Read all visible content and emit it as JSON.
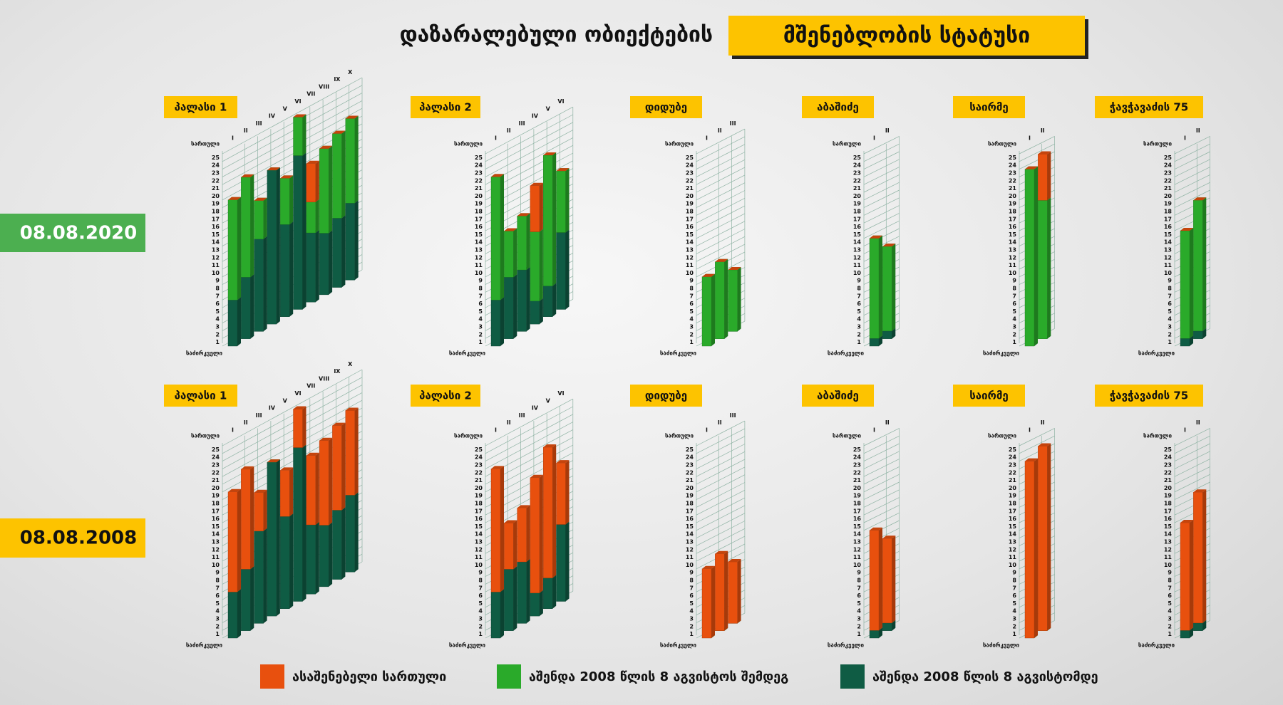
{
  "header": {
    "title": "დაზარალებული ობიექტების",
    "highlight": "მშენებლობის სტატუსი"
  },
  "row_labels": [
    "08.08.2020",
    "08.08.2008"
  ],
  "legend": [
    {
      "name": "ასაშენებელი სართული",
      "color": "#e8500e"
    },
    {
      "name": "აშენდა 2008 წლის 8 აგვისტოს შემდეგ",
      "color": "#2aaa2a"
    },
    {
      "name": "აშენდა 2008 წლის 8 აგვისტომდე",
      "color": "#0f5c44"
    }
  ],
  "chart_data": [
    {
      "type": "bar",
      "title": "პალასი 1",
      "y_label": "სართული",
      "y_base_label": "საძირკველი",
      "categories": [
        "I",
        "II",
        "III",
        "IV",
        "V",
        "VI",
        "VII",
        "VIII",
        "IX",
        "X"
      ],
      "series": [
        {
          "values": [
            0,
            0,
            0,
            0,
            0,
            0,
            5,
            0,
            0,
            0
          ]
        },
        {
          "values": [
            13,
            13,
            5,
            0,
            6,
            5,
            4,
            11,
            11,
            11
          ]
        },
        {
          "values": [
            6,
            8,
            12,
            20,
            12,
            20,
            9,
            8,
            9,
            10
          ]
        }
      ],
      "ylim": [
        0,
        25
      ],
      "yticks": [
        1,
        2,
        3,
        4,
        5,
        6,
        7,
        8,
        9,
        10,
        11,
        12,
        13,
        14,
        15,
        16,
        17,
        18,
        19,
        20,
        21,
        22,
        23,
        24,
        25
      ]
    },
    {
      "type": "bar",
      "title": "პალასი 2",
      "y_label": "სართული",
      "y_base_label": "საძირკველი",
      "categories": [
        "I",
        "II",
        "III",
        "IV",
        "V",
        "VI"
      ],
      "series": [
        {
          "values": [
            0,
            0,
            0,
            6,
            0,
            0
          ]
        },
        {
          "values": [
            16,
            6,
            7,
            9,
            17,
            8
          ]
        },
        {
          "values": [
            6,
            8,
            8,
            3,
            4,
            10
          ]
        }
      ],
      "ylim": [
        0,
        25
      ],
      "yticks": [
        1,
        2,
        3,
        4,
        5,
        6,
        7,
        8,
        9,
        10,
        11,
        12,
        13,
        14,
        15,
        16,
        17,
        18,
        19,
        20,
        21,
        22,
        23,
        24,
        25
      ]
    },
    {
      "type": "bar",
      "title": "დიდუბე",
      "y_label": "სართული",
      "y_base_label": "საძირკველი",
      "categories": [
        "I",
        "II",
        "III"
      ],
      "series": [
        {
          "values": [
            0,
            0,
            0
          ]
        },
        {
          "values": [
            9,
            10,
            8
          ]
        },
        {
          "values": [
            0,
            0,
            0
          ]
        }
      ],
      "ylim": [
        0,
        25
      ],
      "yticks": [
        1,
        2,
        3,
        4,
        5,
        6,
        7,
        8,
        9,
        10,
        11,
        12,
        13,
        14,
        15,
        16,
        17,
        18,
        19,
        20,
        21,
        22,
        23,
        24,
        25
      ]
    },
    {
      "type": "bar",
      "title": "აბაშიძე",
      "y_label": "სართული",
      "y_base_label": "საძირკველი",
      "categories": [
        "I",
        "II"
      ],
      "series": [
        {
          "values": [
            0,
            0
          ]
        },
        {
          "values": [
            13,
            11
          ]
        },
        {
          "values": [
            1,
            1
          ]
        }
      ],
      "ylim": [
        0,
        25
      ],
      "yticks": [
        1,
        2,
        3,
        4,
        5,
        6,
        7,
        8,
        9,
        10,
        11,
        12,
        13,
        14,
        15,
        16,
        17,
        18,
        19,
        20,
        21,
        22,
        23,
        24,
        25
      ]
    },
    {
      "type": "bar",
      "title": "საირმე",
      "y_label": "სართული",
      "y_base_label": "საძირკველი",
      "categories": [
        "I",
        "II"
      ],
      "series": [
        {
          "values": [
            0,
            6
          ]
        },
        {
          "values": [
            23,
            18
          ]
        },
        {
          "values": [
            0,
            0
          ]
        }
      ],
      "ylim": [
        0,
        25
      ],
      "yticks": [
        1,
        2,
        3,
        4,
        5,
        6,
        7,
        8,
        9,
        10,
        11,
        12,
        13,
        14,
        15,
        16,
        17,
        18,
        19,
        20,
        21,
        22,
        23,
        24,
        25
      ]
    },
    {
      "type": "bar",
      "title": "ჭავჭავაძის 75",
      "y_label": "სართული",
      "y_base_label": "საძირკველი",
      "categories": [
        "I",
        "II"
      ],
      "series": [
        {
          "values": [
            0,
            0
          ]
        },
        {
          "values": [
            14,
            17
          ]
        },
        {
          "values": [
            1,
            1
          ]
        }
      ],
      "ylim": [
        0,
        25
      ],
      "yticks": [
        1,
        2,
        3,
        4,
        5,
        6,
        7,
        8,
        9,
        10,
        11,
        12,
        13,
        14,
        15,
        16,
        17,
        18,
        19,
        20,
        21,
        22,
        23,
        24,
        25
      ]
    },
    {
      "type": "bar",
      "title": "პალასი 1",
      "y_label": "სართული",
      "y_base_label": "საძირკველი",
      "categories": [
        "I",
        "II",
        "III",
        "IV",
        "V",
        "VI",
        "VII",
        "VIII",
        "IX",
        "X"
      ],
      "series": [
        {
          "values": [
            13,
            13,
            5,
            0,
            6,
            5,
            9,
            11,
            11,
            11
          ]
        },
        {
          "values": [
            0,
            0,
            0,
            0,
            0,
            0,
            0,
            0,
            0,
            0
          ]
        },
        {
          "values": [
            6,
            8,
            12,
            20,
            12,
            20,
            9,
            8,
            9,
            10
          ]
        }
      ],
      "ylim": [
        0,
        25
      ],
      "yticks": [
        1,
        2,
        3,
        4,
        5,
        6,
        7,
        8,
        9,
        10,
        11,
        12,
        13,
        14,
        15,
        16,
        17,
        18,
        19,
        20,
        21,
        22,
        23,
        24,
        25
      ]
    },
    {
      "type": "bar",
      "title": "პალასი 2",
      "y_label": "სართული",
      "y_base_label": "საძირკველი",
      "categories": [
        "I",
        "II",
        "III",
        "IV",
        "V",
        "VI"
      ],
      "series": [
        {
          "values": [
            16,
            6,
            7,
            15,
            17,
            8
          ]
        },
        {
          "values": [
            0,
            0,
            0,
            0,
            0,
            0
          ]
        },
        {
          "values": [
            6,
            8,
            8,
            3,
            4,
            10
          ]
        }
      ],
      "ylim": [
        0,
        25
      ],
      "yticks": [
        1,
        2,
        3,
        4,
        5,
        6,
        7,
        8,
        9,
        10,
        11,
        12,
        13,
        14,
        15,
        16,
        17,
        18,
        19,
        20,
        21,
        22,
        23,
        24,
        25
      ]
    },
    {
      "type": "bar",
      "title": "დიდუბე",
      "y_label": "სართული",
      "y_base_label": "საძირკველი",
      "categories": [
        "I",
        "II",
        "III"
      ],
      "series": [
        {
          "values": [
            9,
            10,
            8
          ]
        },
        {
          "values": [
            0,
            0,
            0
          ]
        },
        {
          "values": [
            0,
            0,
            0
          ]
        }
      ],
      "ylim": [
        0,
        25
      ],
      "yticks": [
        1,
        2,
        3,
        4,
        5,
        6,
        7,
        8,
        9,
        10,
        11,
        12,
        13,
        14,
        15,
        16,
        17,
        18,
        19,
        20,
        21,
        22,
        23,
        24,
        25
      ]
    },
    {
      "type": "bar",
      "title": "აბაშიძე",
      "y_label": "სართული",
      "y_base_label": "საძირკველი",
      "categories": [
        "I",
        "II"
      ],
      "series": [
        {
          "values": [
            13,
            11
          ]
        },
        {
          "values": [
            0,
            0
          ]
        },
        {
          "values": [
            1,
            1
          ]
        }
      ],
      "ylim": [
        0,
        25
      ],
      "yticks": [
        1,
        2,
        3,
        4,
        5,
        6,
        7,
        8,
        9,
        10,
        11,
        12,
        13,
        14,
        15,
        16,
        17,
        18,
        19,
        20,
        21,
        22,
        23,
        24,
        25
      ]
    },
    {
      "type": "bar",
      "title": "საირმე",
      "y_label": "სართული",
      "y_base_label": "საძირკველი",
      "categories": [
        "I",
        "II"
      ],
      "series": [
        {
          "values": [
            23,
            24
          ]
        },
        {
          "values": [
            0,
            0
          ]
        },
        {
          "values": [
            0,
            0
          ]
        }
      ],
      "ylim": [
        0,
        25
      ],
      "yticks": [
        1,
        2,
        3,
        4,
        5,
        6,
        7,
        8,
        9,
        10,
        11,
        12,
        13,
        14,
        15,
        16,
        17,
        18,
        19,
        20,
        21,
        22,
        23,
        24,
        25
      ]
    },
    {
      "type": "bar",
      "title": "ჭავჭავაძის 75",
      "y_label": "სართული",
      "y_base_label": "საძირკველი",
      "categories": [
        "I",
        "II"
      ],
      "series": [
        {
          "values": [
            14,
            17
          ]
        },
        {
          "values": [
            0,
            0
          ]
        },
        {
          "values": [
            1,
            1
          ]
        }
      ],
      "ylim": [
        0,
        25
      ],
      "yticks": [
        1,
        2,
        3,
        4,
        5,
        6,
        7,
        8,
        9,
        10,
        11,
        12,
        13,
        14,
        15,
        16,
        17,
        18,
        19,
        20,
        21,
        22,
        23,
        24,
        25
      ]
    }
  ]
}
